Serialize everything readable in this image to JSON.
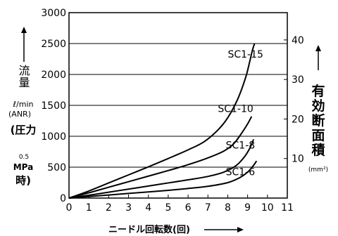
{
  "chart_data": {
    "type": "line",
    "x_axis": {
      "label": "ニードル回転数(回)",
      "range": [
        0,
        11
      ],
      "ticks": [
        "0",
        "1",
        "2",
        "3",
        "4",
        "5",
        "6",
        "7",
        "8",
        "9",
        "10",
        "11"
      ]
    },
    "y_left": {
      "label": "流量",
      "unit": "ℓ/min",
      "unit_sub": "(ANR)",
      "condition_open": "(圧力",
      "condition_value": "0.5",
      "condition_unit": "MPa",
      "condition_close": "時)",
      "range": [
        0,
        3000
      ],
      "ticks": [
        "0",
        "500",
        "1000",
        "1500",
        "2000",
        "2500",
        "3000"
      ]
    },
    "y_right": {
      "label_chars": [
        "有",
        "効",
        "断",
        "面",
        "積"
      ],
      "unit": "(mm²)",
      "range": [
        0,
        46.9
      ],
      "ticks": [
        "10",
        "20",
        "30",
        "40"
      ]
    },
    "grid": "horizontal",
    "series": [
      {
        "name": "SC1-15",
        "x": [
          0,
          1,
          2,
          3,
          4,
          5,
          6,
          6.8,
          7.5,
          8,
          8.5,
          8.9,
          9.1,
          9.25,
          9.35
        ],
        "y": [
          0,
          115,
          245,
          375,
          505,
          640,
          780,
          910,
          1100,
          1300,
          1600,
          1950,
          2200,
          2400,
          2500
        ]
      },
      {
        "name": "SC1-10",
        "x": [
          0,
          1,
          2,
          3,
          4,
          5,
          6,
          7,
          7.8,
          8.3,
          8.7,
          9.0,
          9.2
        ],
        "y": [
          0,
          85,
          175,
          265,
          355,
          445,
          540,
          650,
          760,
          880,
          1050,
          1200,
          1320
        ]
      },
      {
        "name": "SC1-8",
        "x": [
          0,
          1,
          2,
          3,
          4,
          5,
          6,
          7,
          7.8,
          8.4,
          8.8,
          9.1,
          9.3
        ],
        "y": [
          0,
          45,
          95,
          145,
          195,
          245,
          295,
          350,
          420,
          520,
          650,
          800,
          950
        ]
      },
      {
        "name": "SC1-6",
        "x": [
          0,
          1,
          2,
          3,
          4,
          5,
          6,
          7,
          8,
          8.6,
          9.0,
          9.3,
          9.45
        ],
        "y": [
          0,
          25,
          50,
          75,
          100,
          125,
          155,
          190,
          250,
          330,
          420,
          530,
          600
        ]
      }
    ]
  }
}
